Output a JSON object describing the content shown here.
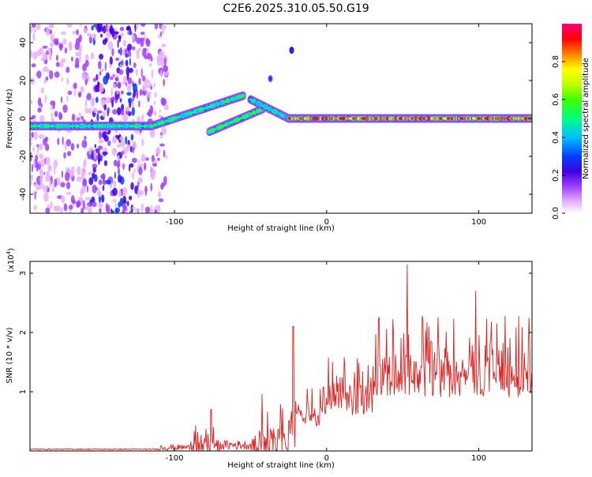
{
  "title": "C2E6.2025.310.05.50.G19",
  "chart_data": [
    {
      "type": "heatmap",
      "panel": "top",
      "xlabel": "Height of straight line (km)",
      "ylabel": "Frequency (Hz)",
      "xlim": [
        -195,
        135
      ],
      "ylim": [
        -50,
        50
      ],
      "xticks": [
        -100,
        0,
        100
      ],
      "yticks": [
        -40,
        -20,
        0,
        20,
        40
      ],
      "colorbar": {
        "label": "Normalized spectral amplitude",
        "range": [
          0,
          1
        ],
        "ticks": [
          0.0,
          0.2,
          0.4,
          0.6,
          0.8
        ],
        "colors": [
          "#ffffff",
          "#e8b0ff",
          "#a040ff",
          "#4000e0",
          "#0040ff",
          "#00c0ff",
          "#00ff80",
          "#40ff00",
          "#c0ff00",
          "#ffff00",
          "#ff8000",
          "#ff0000",
          "#ff0080"
        ]
      },
      "features": [
        {
          "name": "low-level trace",
          "x_range": [
            -195,
            -115
          ],
          "freq": -4,
          "amplitude": 0.55
        },
        {
          "name": "rising branch A",
          "x_range": [
            -115,
            -55
          ],
          "freq_start": -4,
          "freq_end": 12,
          "amplitude": 0.55
        },
        {
          "name": "rising branch B",
          "x_range": [
            -77,
            -42
          ],
          "freq_start": -7,
          "freq_end": 5,
          "amplitude": 0.6
        },
        {
          "name": "transition",
          "x_range": [
            -50,
            -25
          ],
          "freq_start": 10,
          "freq_end": 0,
          "amplitude": 0.5
        },
        {
          "name": "direct signal",
          "x_range": [
            -25,
            135
          ],
          "freq": 0,
          "amplitude": 0.98
        },
        {
          "name": "isolated blob",
          "x": -23,
          "freq": 36,
          "amplitude": 0.35
        },
        {
          "name": "isolated blob",
          "x": -37,
          "freq": 21,
          "amplitude": 0.3
        }
      ]
    },
    {
      "type": "line",
      "panel": "bottom",
      "xlabel": "Height of straight line (km)",
      "ylabel": "SNR (10 * v/v)",
      "y_scale_note": "(x10",
      "y_scale_exponent": "4",
      "xlim": [
        -195,
        135
      ],
      "ylim": [
        0,
        3.2
      ],
      "xticks": [
        -100,
        0,
        100
      ],
      "yticks": [
        1,
        2,
        3
      ],
      "color": "#e02020",
      "segments": [
        {
          "x_range": [
            -195,
            -110
          ],
          "base": 0.03,
          "noise": 0.01
        },
        {
          "x_range": [
            -110,
            -90
          ],
          "base": 0.06,
          "noise": 0.05
        },
        {
          "x_range": [
            -90,
            -70
          ],
          "base": 0.2,
          "noise": 0.25
        },
        {
          "x_range": [
            -70,
            -50
          ],
          "base": 0.1,
          "noise": 0.08
        },
        {
          "x_range": [
            -50,
            -20
          ],
          "base": 0.4,
          "noise": 0.6
        },
        {
          "x_range": [
            -20,
            0
          ],
          "base": 0.75,
          "noise": 0.35
        },
        {
          "x_range": [
            0,
            30
          ],
          "base": 1.1,
          "noise": 0.5
        },
        {
          "x_range": [
            30,
            135
          ],
          "base": 1.6,
          "noise": 0.7
        }
      ],
      "peaks": [
        {
          "x": -76,
          "y": 0.7
        },
        {
          "x": -22,
          "y": 2.1
        },
        {
          "x": 53,
          "y": 3.15
        },
        {
          "x": 98,
          "y": 2.7
        },
        {
          "x": 133,
          "y": 2.25
        }
      ]
    }
  ]
}
